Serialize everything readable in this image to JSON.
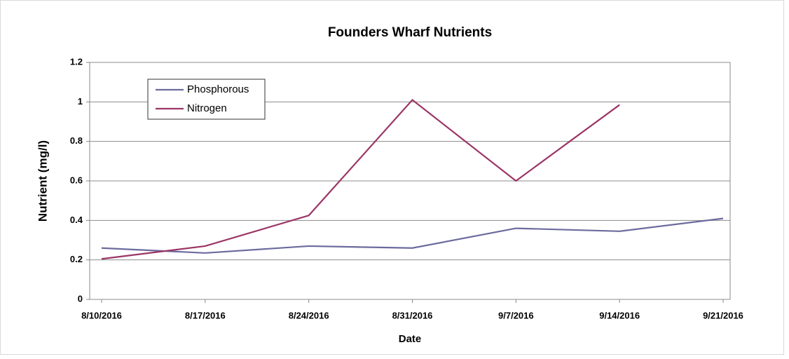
{
  "chart_data": {
    "type": "line",
    "title": "Founders Wharf Nutrients",
    "x_label": "Date",
    "y_label": "Nutrient (mg/l)",
    "categories": [
      "8/10/2016",
      "8/17/2016",
      "8/24/2016",
      "8/31/2016",
      "9/7/2016",
      "9/14/2016",
      "9/21/2016"
    ],
    "series": [
      {
        "name": "Phosphorous",
        "color": "#6b6b9e",
        "values": [
          0.26,
          0.235,
          0.27,
          0.26,
          0.36,
          0.345,
          0.41
        ]
      },
      {
        "name": "Nitrogen",
        "color": "#9b3566",
        "values": [
          0.205,
          0.27,
          0.425,
          1.01,
          0.6,
          0.985,
          null
        ]
      }
    ],
    "ylim": [
      0,
      1.2
    ],
    "yticks": [
      0,
      0.2,
      0.4,
      0.6,
      0.8,
      1,
      1.2
    ],
    "grid": true,
    "legend": "upper left"
  }
}
